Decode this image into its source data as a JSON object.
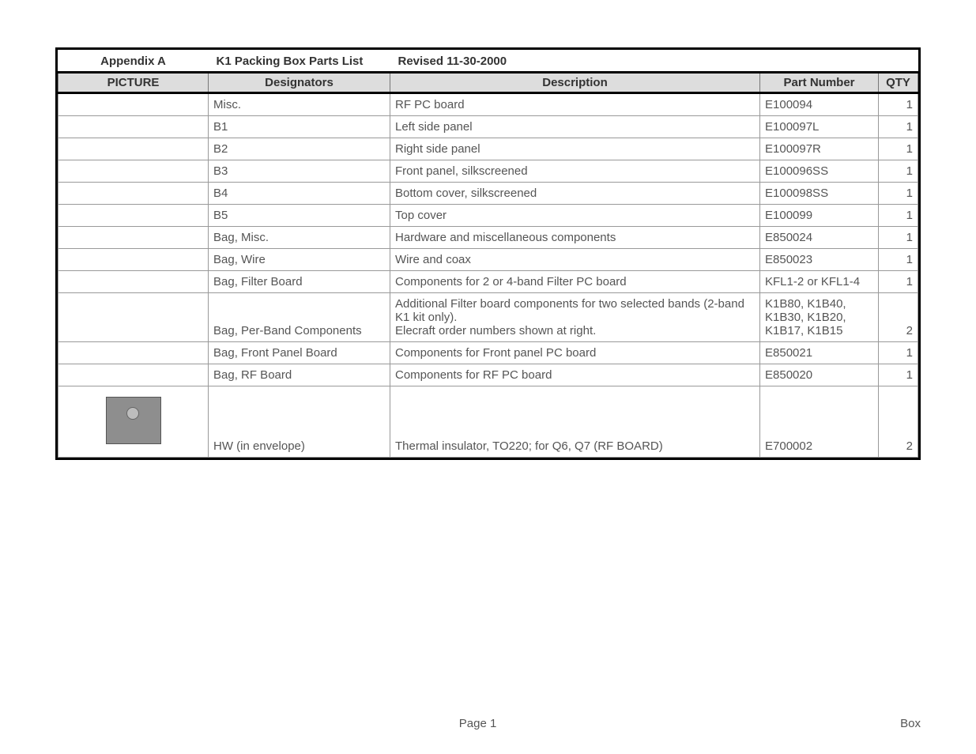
{
  "title_row": {
    "appendix": "Appendix A",
    "title": "K1 Packing Box Parts List",
    "revised": "Revised 11-30-2000"
  },
  "columns": {
    "picture": "PICTURE",
    "designators": "Designators",
    "description": "Description",
    "part_number": "Part Number",
    "qty": "QTY"
  },
  "rows": [
    {
      "picture": "",
      "designators": "Misc.",
      "description": "RF PC board",
      "part_number": "E100094",
      "qty": "1"
    },
    {
      "picture": "",
      "designators": "B1",
      "description": "Left side panel",
      "part_number": "E100097L",
      "qty": "1"
    },
    {
      "picture": "",
      "designators": "B2",
      "description": "Right side panel",
      "part_number": "E100097R",
      "qty": "1"
    },
    {
      "picture": "",
      "designators": "B3",
      "description": "Front panel, silkscreened",
      "part_number": "E100096SS",
      "qty": "1"
    },
    {
      "picture": "",
      "designators": "B4",
      "description": "Bottom cover, silkscreened",
      "part_number": "E100098SS",
      "qty": "1"
    },
    {
      "picture": "",
      "designators": "B5",
      "description": "Top cover",
      "part_number": "E100099",
      "qty": "1"
    },
    {
      "picture": "",
      "designators": "Bag, Misc.",
      "description": "Hardware and miscellaneous components",
      "part_number": "E850024",
      "qty": "1"
    },
    {
      "picture": "",
      "designators": "Bag, Wire",
      "description": "Wire and coax",
      "part_number": "E850023",
      "qty": "1"
    },
    {
      "picture": "",
      "designators": "Bag, Filter Board",
      "description": "Components for 2 or 4-band Filter PC board",
      "part_number": "KFL1-2 or KFL1-4",
      "qty": "1"
    },
    {
      "picture": "",
      "designators": "Bag, Per-Band Components",
      "description": "Additional Filter board components for two selected bands (2-band K1 kit only).\nElecraft order numbers shown at right.",
      "part_number": "K1B80, K1B40, K1B30, K1B20, K1B17, K1B15",
      "qty": "2"
    },
    {
      "picture": "",
      "designators": "Bag, Front Panel Board",
      "description": "Components for Front panel PC board",
      "part_number": "E850021",
      "qty": "1"
    },
    {
      "picture": "",
      "designators": "Bag, RF Board",
      "description": "Components for RF PC board",
      "part_number": "E850020",
      "qty": "1"
    },
    {
      "picture": "thumb",
      "designators": "HW (in envelope)",
      "description": "Thermal insulator,  TO220; for Q6, Q7 (RF BOARD)",
      "part_number": "E700002",
      "qty": "2",
      "tall": true
    }
  ],
  "footer": {
    "center": "Page 1",
    "right": "Box"
  },
  "style": {
    "row_height_normal": 29,
    "row_height_tall": 90
  }
}
